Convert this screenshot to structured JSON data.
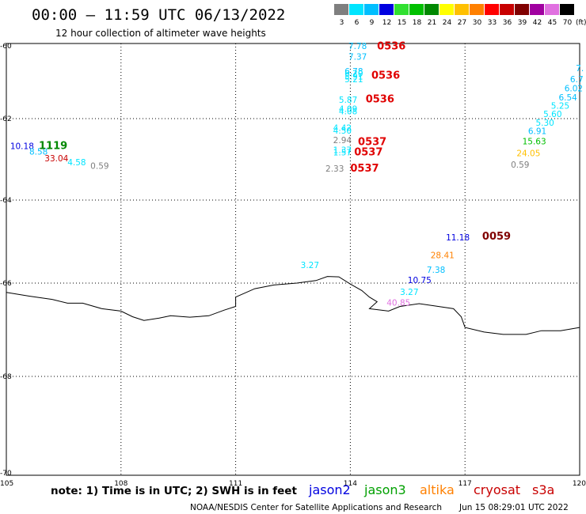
{
  "header": {
    "title": "00:00 — 11:59 UTC 06/13/2022",
    "subtitle": "12 hour collection of altimeter wave heights"
  },
  "legend": {
    "unit": "(ft)",
    "bins": [
      {
        "label": "3",
        "color": "#7f7f7f"
      },
      {
        "label": "6",
        "color": "#00e5ff"
      },
      {
        "label": "9",
        "color": "#00bfff"
      },
      {
        "label": "12",
        "color": "#0000e0"
      },
      {
        "label": "15",
        "color": "#30e030"
      },
      {
        "label": "18",
        "color": "#00c000"
      },
      {
        "label": "21",
        "color": "#008800"
      },
      {
        "label": "24",
        "color": "#ffff00"
      },
      {
        "label": "27",
        "color": "#ffc000"
      },
      {
        "label": "30",
        "color": "#ff8000"
      },
      {
        "label": "33",
        "color": "#ff0000"
      },
      {
        "label": "36",
        "color": "#c80000"
      },
      {
        "label": "39",
        "color": "#800000"
      },
      {
        "label": "42",
        "color": "#a000a0"
      },
      {
        "label": "45",
        "color": "#e070e0"
      },
      {
        "label": "70",
        "color": "#000000"
      }
    ]
  },
  "axes": {
    "lat_labels": [
      "-60",
      "-62",
      "-64",
      "-66",
      "-68",
      "-70"
    ],
    "lon_labels": [
      "105",
      "108",
      "111",
      "114",
      "117",
      "120"
    ]
  },
  "observations": [
    {
      "text": "7.78",
      "lon": 113.95,
      "lat": -60.09,
      "color": "#00bfff"
    },
    {
      "text": "7.37",
      "lon": 113.95,
      "lat": -60.38,
      "color": "#00bfff"
    },
    {
      "text": "6.78",
      "lon": 113.85,
      "lat": -60.78,
      "color": "#00bfff"
    },
    {
      "text": "6.20",
      "lon": 113.85,
      "lat": -60.84,
      "color": "#00e5ff"
    },
    {
      "text": "5.91",
      "lon": 113.85,
      "lat": -60.92,
      "color": "#00e5ff"
    },
    {
      "text": "5.21",
      "lon": 113.85,
      "lat": -61.0,
      "color": "#00e5ff"
    },
    {
      "text": "5.87",
      "lon": 113.7,
      "lat": -61.57,
      "color": "#00e5ff"
    },
    {
      "text": "4.09",
      "lon": 113.7,
      "lat": -61.82,
      "color": "#00e5ff"
    },
    {
      "text": "4.08",
      "lon": 113.7,
      "lat": -61.88,
      "color": "#00e5ff"
    },
    {
      "text": "4.42",
      "lon": 113.55,
      "lat": -62.3,
      "color": "#00e5ff"
    },
    {
      "text": "4.50",
      "lon": 113.55,
      "lat": -62.37,
      "color": "#00e5ff"
    },
    {
      "text": "2.94",
      "lon": 113.55,
      "lat": -62.6,
      "color": "#7f7f7f"
    },
    {
      "text": "1.37",
      "lon": 113.55,
      "lat": -62.84,
      "color": "#00e5ff"
    },
    {
      "text": "1.57",
      "lon": 113.55,
      "lat": -62.9,
      "color": "#00e5ff"
    },
    {
      "text": "2.33",
      "lon": 113.35,
      "lat": -63.3,
      "color": "#7f7f7f"
    },
    {
      "text": "10.18",
      "lon": 105.1,
      "lat": -62.75,
      "color": "#0000e0"
    },
    {
      "text": "8.58",
      "lon": 105.6,
      "lat": -62.88,
      "color": "#00bfff"
    },
    {
      "text": "33.04",
      "lon": 106.0,
      "lat": -63.05,
      "color": "#c80000"
    },
    {
      "text": "4.58",
      "lon": 106.6,
      "lat": -63.15,
      "color": "#00e5ff"
    },
    {
      "text": "0.59",
      "lon": 107.2,
      "lat": -63.23,
      "color": "#7f7f7f"
    },
    {
      "text": "3.27",
      "lon": 112.7,
      "lat": -65.64,
      "color": "#00e5ff"
    },
    {
      "text": "11.18",
      "lon": 116.5,
      "lat": -64.97,
      "color": "#0000e0"
    },
    {
      "text": "28.41",
      "lon": 116.1,
      "lat": -65.4,
      "color": "#ff8000"
    },
    {
      "text": "7.38",
      "lon": 116.0,
      "lat": -65.75,
      "color": "#00bfff"
    },
    {
      "text": "10.75",
      "lon": 115.5,
      "lat": -66.0,
      "color": "#0000e0"
    },
    {
      "text": "3.27",
      "lon": 115.3,
      "lat": -66.25,
      "color": "#00e5ff"
    },
    {
      "text": "40.85",
      "lon": 114.95,
      "lat": -66.48,
      "color": "#e070e0"
    },
    {
      "text": "7.",
      "lon": 119.9,
      "lat": -60.7,
      "color": "#00bfff"
    },
    {
      "text": "6.7",
      "lon": 119.75,
      "lat": -61.0,
      "color": "#00bfff"
    },
    {
      "text": "6.02",
      "lon": 119.6,
      "lat": -61.25,
      "color": "#00bfff"
    },
    {
      "text": "6.54",
      "lon": 119.45,
      "lat": -61.5,
      "color": "#00bfff"
    },
    {
      "text": "5.25",
      "lon": 119.25,
      "lat": -61.73,
      "color": "#00e5ff"
    },
    {
      "text": "5.60",
      "lon": 119.05,
      "lat": -61.96,
      "color": "#00e5ff"
    },
    {
      "text": "5.30",
      "lon": 118.85,
      "lat": -62.17,
      "color": "#00e5ff"
    },
    {
      "text": "6.91",
      "lon": 118.65,
      "lat": -62.38,
      "color": "#00bfff"
    },
    {
      "text": "15.63",
      "lon": 118.5,
      "lat": -62.63,
      "color": "#00c000"
    },
    {
      "text": "24.05",
      "lon": 118.35,
      "lat": -62.92,
      "color": "#ffc000"
    },
    {
      "text": "0.59",
      "lon": 118.2,
      "lat": -63.2,
      "color": "#7f7f7f"
    }
  ],
  "pass_times": [
    {
      "text": "0536",
      "lon": 114.7,
      "lat": -60.1,
      "color": "#e00000"
    },
    {
      "text": "0536",
      "lon": 114.55,
      "lat": -60.9,
      "color": "#e00000"
    },
    {
      "text": "0536",
      "lon": 114.4,
      "lat": -61.55,
      "color": "#e00000"
    },
    {
      "text": "0537",
      "lon": 114.2,
      "lat": -62.65,
      "color": "#e00000"
    },
    {
      "text": "0537",
      "lon": 114.1,
      "lat": -62.9,
      "color": "#e00000"
    },
    {
      "text": "0537",
      "lon": 114.0,
      "lat": -63.3,
      "color": "#e00000"
    },
    {
      "text": "1119",
      "lon": 105.85,
      "lat": -62.75,
      "color": "#008800"
    },
    {
      "text": "0059",
      "lon": 117.45,
      "lat": -64.95,
      "color": "#800000"
    }
  ],
  "coastline": [
    [
      105.0,
      -66.2
    ],
    [
      105.6,
      -66.28
    ],
    [
      106.2,
      -66.35
    ],
    [
      106.6,
      -66.43
    ],
    [
      107.0,
      -66.43
    ],
    [
      107.5,
      -66.55
    ],
    [
      108.0,
      -66.6
    ],
    [
      108.3,
      -66.72
    ],
    [
      108.6,
      -66.8
    ],
    [
      109.0,
      -66.75
    ],
    [
      109.3,
      -66.7
    ],
    [
      109.8,
      -66.73
    ],
    [
      110.3,
      -66.7
    ],
    [
      110.7,
      -66.58
    ],
    [
      111.0,
      -66.5
    ],
    [
      111.0,
      -66.3
    ],
    [
      111.5,
      -66.12
    ],
    [
      112.0,
      -66.04
    ],
    [
      112.6,
      -66.0
    ],
    [
      113.1,
      -65.94
    ],
    [
      113.4,
      -65.84
    ],
    [
      113.7,
      -65.85
    ],
    [
      114.0,
      -66.02
    ],
    [
      114.3,
      -66.16
    ],
    [
      114.5,
      -66.3
    ],
    [
      114.7,
      -66.4
    ],
    [
      114.5,
      -66.55
    ],
    [
      115.0,
      -66.6
    ],
    [
      115.3,
      -66.5
    ],
    [
      115.8,
      -66.44
    ],
    [
      116.3,
      -66.5
    ],
    [
      116.7,
      -66.55
    ],
    [
      116.9,
      -66.72
    ],
    [
      117.0,
      -66.95
    ],
    [
      117.5,
      -67.05
    ],
    [
      118.0,
      -67.1
    ],
    [
      118.6,
      -67.1
    ],
    [
      119.0,
      -67.02
    ],
    [
      119.5,
      -67.02
    ],
    [
      120.0,
      -66.95
    ]
  ],
  "footer": {
    "note": "note: 1) Time is in UTC; 2) SWH is in feet",
    "credit": "NOAA/NESDIS Center for Satellite Applications and Research",
    "timestamp": "Jun 15 08:29:01 UTC 2022",
    "satellites": [
      {
        "name": "jason2",
        "color": "#0000e0"
      },
      {
        "name": "jason3",
        "color": "#00a000"
      },
      {
        "name": "altika",
        "color": "#ff8000"
      },
      {
        "name": "cryosat",
        "color": "#c80000"
      },
      {
        "name": "s3a",
        "color": "#c80000"
      }
    ]
  }
}
